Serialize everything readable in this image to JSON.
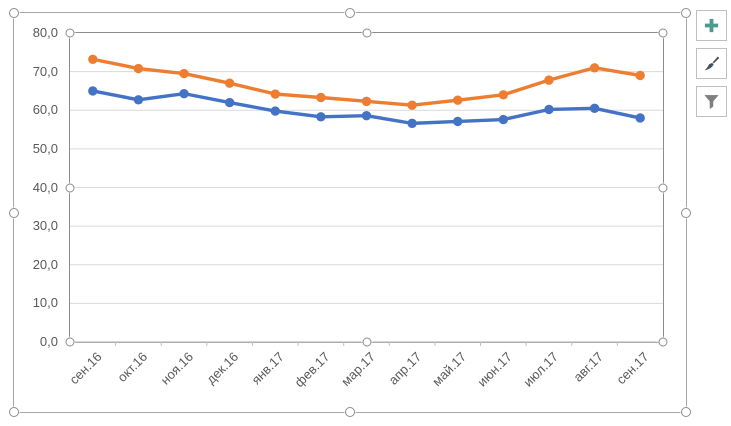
{
  "chart_data": {
    "type": "line",
    "title": "",
    "xlabel": "",
    "ylabel": "",
    "categories": [
      "сен.16",
      "окт.16",
      "ноя.16",
      "дек.16",
      "янв.17",
      "фев.17",
      "мар.17",
      "апр.17",
      "май.17",
      "июн.17",
      "июл.17",
      "авг.17",
      "сен.17"
    ],
    "series": [
      {
        "name": "orange",
        "color": "#ED7D31",
        "marker": "circle",
        "values": [
          73.2,
          70.8,
          69.5,
          67.0,
          64.2,
          63.3,
          62.3,
          61.3,
          62.6,
          64.0,
          67.8,
          71.0,
          69.0
        ]
      },
      {
        "name": "blue",
        "color": "#4472C4",
        "marker": "circle",
        "values": [
          65.0,
          62.7,
          64.3,
          62.0,
          59.8,
          58.3,
          58.6,
          56.6,
          57.1,
          57.6,
          60.2,
          60.5,
          58.0
        ]
      }
    ],
    "ylim": [
      0,
      80
    ],
    "y_tick_step": 10,
    "y_tick_labels": [
      "0,0",
      "10,0",
      "20,0",
      "30,0",
      "40,0",
      "50,0",
      "60,0",
      "70,0",
      "80,0"
    ],
    "grid": true,
    "legend": false
  },
  "chart_tools": {
    "buttons": [
      {
        "name": "chart-elements-button",
        "icon": "plus-icon",
        "icon_color": "#4C9B8E"
      },
      {
        "name": "chart-styles-button",
        "icon": "paintbrush-icon",
        "icon_color": "#44545C"
      },
      {
        "name": "chart-filters-button",
        "icon": "filter-icon",
        "icon_color": "#7F7F7F"
      }
    ]
  },
  "style": {
    "grid_color": "#D9D9D9",
    "axis_line_color": "#BFBFBF",
    "tick_label_color": "#595959",
    "chart_border_color": "#A6A6A6",
    "plot_border_color": "#8C8C8C",
    "selection_handle_color": "#8C8C8C",
    "background": "#FFFFFF"
  }
}
